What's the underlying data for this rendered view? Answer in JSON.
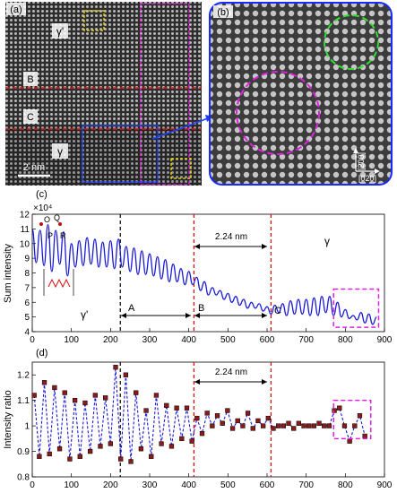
{
  "panel_a": {
    "label": "(a)",
    "phase_top": "γ'",
    "phase_bottom": "γ",
    "marker_b": "B",
    "marker_c": "C",
    "scale_bar": "2 nm"
  },
  "panel_b": {
    "label": "(b)",
    "dir_vertical": "[2̄00]",
    "dir_horizontal": "[020]"
  },
  "chart_data": [
    {
      "panel": "(c)",
      "type": "line",
      "ylabel": "Sum intensity",
      "y_multiplier": "×10⁴",
      "xlim": [
        0,
        900
      ],
      "ylim": [
        4,
        12
      ],
      "x_ticks": [
        "0",
        "100",
        "200",
        "300",
        "400",
        "500",
        "600",
        "700",
        "800",
        "900"
      ],
      "y_ticks": [
        "4",
        "5",
        "6",
        "7",
        "8",
        "9",
        "10",
        "11",
        "12"
      ],
      "vertical_lines": [
        {
          "x": 225,
          "color": "#000000",
          "style": "dashed"
        },
        {
          "x": 413,
          "color": "#dd0000",
          "style": "dashed"
        },
        {
          "x": 610,
          "color": "#dd0000",
          "style": "dashed"
        }
      ],
      "annotations": {
        "span_label": "2.24 nm",
        "span_x": [
          413,
          610
        ],
        "point_o": "O",
        "point_p": "P",
        "point_q": "Q",
        "point_r": "R",
        "region_a": "A",
        "region_b": "B",
        "region_c": "C",
        "phase_left": "γ'",
        "phase_right": "γ"
      },
      "highlight_box": {
        "x": [
          770,
          885
        ],
        "y": [
          4.3,
          6.9
        ]
      },
      "series": [
        {
          "color": "#1a1ad6",
          "x": [
            0,
            10,
            20,
            30,
            40,
            50,
            60,
            70,
            80,
            90,
            100,
            110,
            120,
            130,
            140,
            150,
            160,
            170,
            180,
            190,
            200,
            210,
            220,
            230,
            240,
            250,
            260,
            270,
            280,
            290,
            300,
            310,
            320,
            330,
            340,
            350,
            360,
            370,
            380,
            390,
            400,
            410,
            420,
            430,
            440,
            450,
            460,
            470,
            480,
            490,
            500,
            510,
            520,
            530,
            540,
            550,
            560,
            570,
            580,
            590,
            600,
            610,
            620,
            630,
            640,
            650,
            660,
            670,
            680,
            690,
            700,
            710,
            720,
            730,
            740,
            750,
            760,
            770,
            780,
            790,
            800,
            810,
            820,
            830,
            840,
            850,
            860,
            870,
            880
          ],
          "y": [
            11.0,
            8.7,
            10.9,
            8.5,
            11.3,
            8.1,
            10.9,
            8.6,
            10.8,
            7.8,
            10.0,
            8.4,
            10.2,
            8.5,
            10.4,
            8.6,
            10.3,
            8.4,
            10.1,
            8.4,
            10.2,
            8.3,
            10.3,
            8.4,
            9.8,
            8.1,
            9.7,
            7.9,
            9.5,
            7.9,
            9.3,
            7.8,
            9.1,
            7.6,
            8.9,
            7.4,
            8.6,
            7.4,
            8.3,
            7.2,
            8.1,
            7.2,
            7.7,
            6.8,
            7.4,
            6.5,
            7.0,
            6.5,
            6.8,
            6.2,
            6.6,
            6.0,
            6.4,
            5.8,
            6.2,
            5.6,
            6.0,
            5.6,
            5.9,
            5.4,
            5.7,
            5.2,
            5.8,
            5.3,
            5.9,
            5.1,
            6.1,
            5.2,
            6.2,
            5.2,
            6.2,
            5.1,
            6.3,
            5.1,
            6.4,
            5.3,
            6.4,
            5.1,
            6.0,
            5.0,
            5.5,
            4.9,
            5.1,
            4.8,
            5.3,
            4.6,
            5.2,
            4.5,
            5.0
          ]
        }
      ]
    },
    {
      "panel": "(d)",
      "type": "line",
      "ylabel": "Intensity ratio",
      "xlim": [
        0,
        900
      ],
      "ylim": [
        0.8,
        1.25
      ],
      "x_ticks": [
        "0",
        "100",
        "200",
        "300",
        "400",
        "500",
        "600",
        "700",
        "800",
        "900"
      ],
      "y_ticks": [
        "0.8",
        "0.9",
        "1",
        "1.1",
        "1.2"
      ],
      "vertical_lines": [
        {
          "x": 225,
          "color": "#000000",
          "style": "dashed"
        },
        {
          "x": 413,
          "color": "#dd0000",
          "style": "dashed"
        },
        {
          "x": 610,
          "color": "#dd0000",
          "style": "dashed"
        }
      ],
      "annotations": {
        "span_label": "2.24 nm",
        "span_x": [
          413,
          610
        ]
      },
      "highlight_box": {
        "x": [
          770,
          865
        ],
        "y": [
          0.95,
          1.1
        ]
      },
      "series": [
        {
          "color": "#1a1ad6",
          "marker_color": "#8b1a1a",
          "x": [
            5,
            18,
            31,
            44,
            57,
            70,
            83,
            96,
            109,
            122,
            135,
            148,
            161,
            174,
            187,
            200,
            213,
            226,
            239,
            252,
            265,
            278,
            291,
            304,
            317,
            330,
            343,
            356,
            369,
            382,
            395,
            408,
            421,
            434,
            447,
            460,
            473,
            486,
            499,
            512,
            525,
            538,
            551,
            564,
            577,
            590,
            603,
            616,
            629,
            642,
            655,
            668,
            681,
            694,
            707,
            720,
            733,
            746,
            759,
            772,
            785,
            798,
            811,
            824,
            837,
            850
          ],
          "y": [
            1.12,
            0.88,
            1.17,
            0.89,
            1.15,
            0.91,
            1.13,
            0.87,
            1.1,
            0.88,
            1.09,
            0.9,
            1.12,
            0.92,
            1.11,
            0.93,
            1.23,
            0.87,
            1.2,
            0.86,
            1.13,
            0.91,
            1.06,
            0.88,
            1.12,
            0.93,
            1.08,
            0.92,
            1.07,
            0.95,
            1.07,
            0.94,
            1.03,
            0.97,
            1.05,
            1.0,
            1.04,
            1.01,
            1.06,
            0.99,
            1.02,
            1.0,
            1.05,
            0.99,
            1.02,
            1.0,
            1.03,
            0.99,
            1.0,
            1.0,
            1.01,
            0.99,
            1.01,
            1.0,
            1.0,
            1.0,
            1.01,
            1.0,
            1.0,
            1.06,
            1.07,
            1.0,
            0.94,
            1.0,
            1.04,
            0.96
          ]
        }
      ]
    }
  ]
}
